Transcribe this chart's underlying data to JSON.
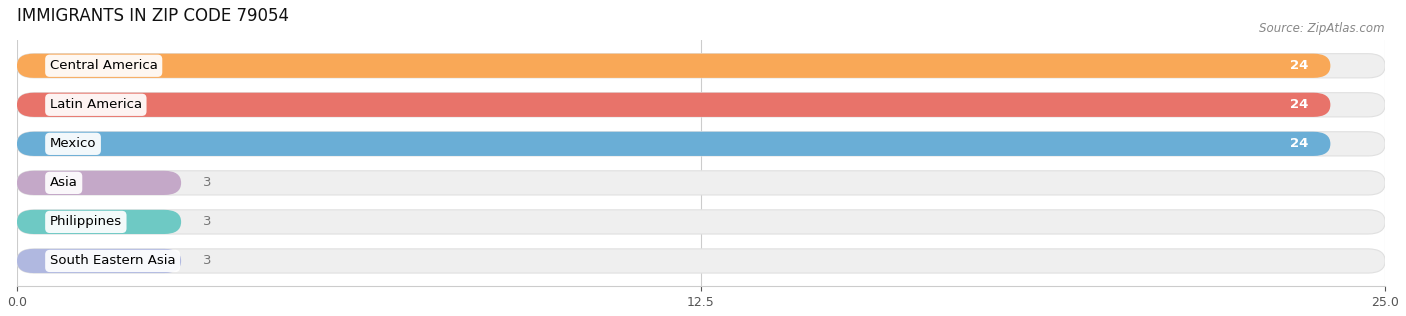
{
  "title": "IMMIGRANTS IN ZIP CODE 79054",
  "source": "Source: ZipAtlas.com",
  "categories": [
    "Central America",
    "Latin America",
    "Mexico",
    "Asia",
    "Philippines",
    "South Eastern Asia"
  ],
  "values": [
    24,
    24,
    24,
    3,
    3,
    3
  ],
  "bar_colors": [
    "#F9A857",
    "#E8736A",
    "#6AAED6",
    "#C4A8C8",
    "#6EC9C4",
    "#B0B8E0"
  ],
  "bar_bg_color": "#EFEFEF",
  "bar_bg_border": "#E0E0E0",
  "xlim": [
    0,
    25
  ],
  "xticks": [
    0,
    12.5,
    25
  ],
  "label_fontsize": 9.5,
  "value_label_color_full": "#FFFFFF",
  "value_label_color_partial": "#777777",
  "title_fontsize": 12,
  "source_fontsize": 8.5,
  "background_color": "#FFFFFF"
}
